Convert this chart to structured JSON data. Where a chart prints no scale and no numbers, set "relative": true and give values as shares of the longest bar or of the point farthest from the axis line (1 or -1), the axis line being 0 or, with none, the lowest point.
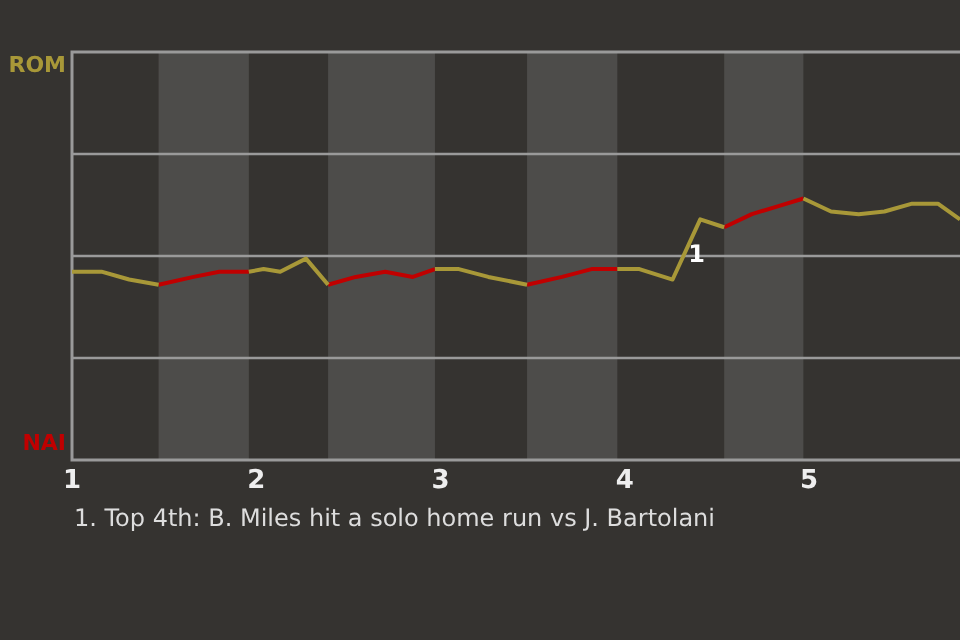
{
  "chart_data": {
    "type": "line",
    "relative": true,
    "xlim": [
      1,
      5.82
    ],
    "xticks": [
      1,
      2,
      3,
      4,
      5
    ],
    "series": [
      {
        "color": "#a89838",
        "x": [
          1.0,
          1.16,
          1.31,
          1.47,
          1.7,
          1.96,
          2.04,
          2.13,
          2.27,
          2.39,
          2.7,
          2.97,
          3.1,
          3.26,
          3.47,
          3.7,
          3.96,
          4.08,
          4.26,
          4.41,
          4.54,
          4.7,
          4.97,
          5.12,
          5.27,
          5.41,
          5.56,
          5.7,
          5.82
        ],
        "values": [
          0.72,
          0.72,
          0.69,
          0.67,
          null,
          0.72,
          0.73,
          0.72,
          0.77,
          0.67,
          null,
          0.73,
          0.73,
          0.7,
          0.67,
          null,
          0.73,
          0.73,
          0.69,
          0.92,
          0.89,
          null,
          1,
          0.95,
          0.94,
          0.95,
          0.98,
          0.98,
          0.92
        ]
      },
      {
        "color": "#c00000",
        "x": [
          1.47,
          1.66,
          1.8,
          1.96,
          2.2,
          2.39,
          2.54,
          2.7,
          2.85,
          2.97,
          3.2,
          3.47,
          3.66,
          3.82,
          3.96,
          4.3,
          4.54,
          4.69,
          4.83,
          4.97
        ],
        "values": [
          0.67,
          0.7,
          0.72,
          0.72,
          null,
          0.67,
          0.7,
          0.72,
          0.7,
          0.73,
          null,
          0.67,
          0.7,
          0.73,
          0.73,
          null,
          0.89,
          0.94,
          0.97,
          1
        ]
      }
    ],
    "bands": [
      {
        "axis": "x",
        "from": 1.47,
        "to": 1.96,
        "color": "#4d4c4a"
      },
      {
        "axis": "x",
        "from": 2.39,
        "to": 2.97,
        "color": "#4d4c4a"
      },
      {
        "axis": "x",
        "from": 3.47,
        "to": 3.96,
        "color": "#4d4c4a"
      },
      {
        "axis": "x",
        "from": 4.54,
        "to": 4.97,
        "color": "#4d4c4a"
      }
    ],
    "annotations": [
      "ROM",
      "NAI",
      {
        "text": "1",
        "x": 4.41,
        "y": 0.92
      },
      "1. Top 4th: B. Miles hit a solo home run vs J. Bartolani"
    ],
    "ref_lines": [
      {
        "axis": "y",
        "value": 0.39,
        "color": "#9a9a9a"
      },
      {
        "axis": "y",
        "value": 0.78,
        "color": "#9a9a9a"
      },
      {
        "axis": "y",
        "value": 1.17,
        "color": "#9a9a9a"
      }
    ],
    "legend": false,
    "marker": "none",
    "line_style": "solid"
  }
}
